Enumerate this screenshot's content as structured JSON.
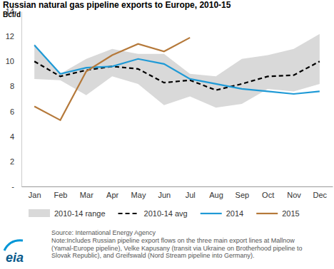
{
  "chart_data": {
    "type": "line",
    "title": "Russian natural gas pipeline exports to Europe, 2010-15",
    "y_label": "Bcf/d",
    "categories": [
      "Jan",
      "Feb",
      "Mar",
      "Apr",
      "May",
      "Jun",
      "Jul",
      "Aug",
      "Sep",
      "Oct",
      "Nov",
      "Dec"
    ],
    "series": [
      {
        "name": "2010-14 range",
        "type": "range",
        "color": "#d9d9d9",
        "low": [
          8.6,
          8.5,
          7.3,
          8.8,
          8.2,
          6.5,
          7.2,
          6.3,
          6.6,
          7.8,
          7.6,
          8.2
        ],
        "high": [
          11.4,
          9.0,
          10.2,
          11.0,
          10.6,
          10.6,
          9.0,
          8.8,
          10.2,
          10.5,
          11.0,
          12.2
        ]
      },
      {
        "name": "2010-14 avg",
        "type": "line",
        "color": "#000000",
        "line_style": "dashed",
        "values": [
          10.0,
          8.8,
          9.3,
          9.6,
          9.4,
          8.3,
          8.5,
          7.7,
          8.2,
          8.8,
          8.9,
          10.0
        ]
      },
      {
        "name": "2014",
        "type": "line",
        "color": "#1f9ad6",
        "line_style": "solid",
        "values": [
          11.3,
          9.0,
          9.5,
          9.6,
          10.2,
          9.8,
          8.6,
          8.2,
          7.8,
          7.6,
          7.4,
          7.6
        ]
      },
      {
        "name": "2015",
        "type": "line",
        "color": "#b5793a",
        "line_style": "solid",
        "values": [
          6.4,
          5.3,
          9.2,
          10.5,
          11.4,
          10.8,
          11.9,
          null,
          null,
          null,
          null,
          null
        ]
      }
    ],
    "ylim": [
      0,
      14
    ],
    "yticks": [
      {
        "value": 0,
        "label": "-"
      },
      2,
      4,
      6,
      8,
      10,
      12,
      14
    ],
    "grid": false,
    "legend": "bottom",
    "source": "Source: International Energy Agency",
    "note": [
      "Note:Includes Russian pipeline export flows on the three main export lines at Mallnow",
      "(Yamal-Europe pipeline), Velke Kapusany (transit via Ukraine on Brotherhood pipeline to",
      "Slovak Republic), and Greifswald (Nord Stream pipeline into Germany)."
    ],
    "logo": "eia"
  }
}
